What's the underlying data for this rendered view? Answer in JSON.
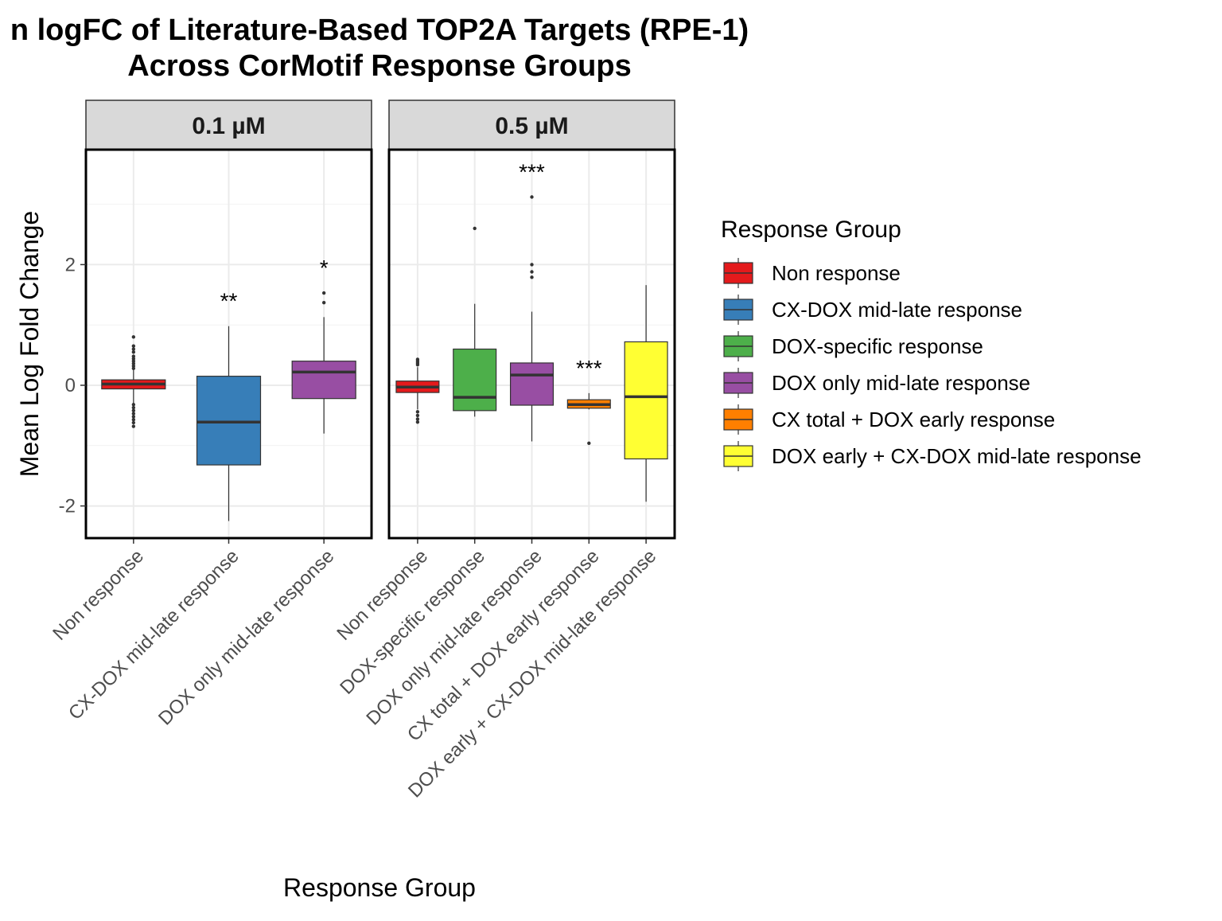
{
  "chart_data": {
    "type": "boxplot",
    "title_line1": "n logFC of Literature-Based TOP2A Targets (RPE-1)",
    "title_line2": "Across CorMotif Response Groups",
    "xlabel": "Response Group",
    "ylabel": "Mean Log Fold Change",
    "ylim": [
      -2.5,
      3.9
    ],
    "yticks": [
      -2,
      0,
      2
    ],
    "grid": true,
    "legend": {
      "title": "Response Group",
      "position": "right",
      "items": [
        {
          "label": "Non response",
          "color": "#E41A1C"
        },
        {
          "label": "CX-DOX mid-late response",
          "color": "#377EB8"
        },
        {
          "label": "DOX-specific response",
          "color": "#4DAF4A"
        },
        {
          "label": "DOX only mid-late response",
          "color": "#984EA3"
        },
        {
          "label": "CX total + DOX early response",
          "color": "#FF7F00"
        },
        {
          "label": "DOX early + CX-DOX mid-late response",
          "color": "#FFFF33"
        }
      ]
    },
    "panels": [
      {
        "label": "0.1 µM",
        "groups": [
          {
            "category": "Non response",
            "color": "#E41A1C",
            "q1": -0.06,
            "median": 0.02,
            "q3": 0.09,
            "whisker_low": -0.3,
            "whisker_high": 0.25,
            "outliers": [
              0.8,
              0.65,
              0.6,
              0.55,
              0.48,
              0.44,
              0.4,
              0.36,
              0.32,
              0.28,
              -0.32,
              -0.37,
              -0.42,
              -0.47,
              -0.52,
              -0.57,
              -0.62,
              -0.68
            ],
            "sig": ""
          },
          {
            "category": "CX-DOX mid-late response",
            "color": "#377EB8",
            "q1": -1.32,
            "median": -0.61,
            "q3": 0.15,
            "whisker_low": -2.25,
            "whisker_high": 0.98,
            "outliers": [],
            "sig": "**"
          },
          {
            "category": "DOX only mid-late response",
            "color": "#984EA3",
            "q1": -0.22,
            "median": 0.22,
            "q3": 0.4,
            "whisker_low": -0.8,
            "whisker_high": 1.13,
            "outliers": [
              1.53,
              1.37
            ],
            "sig": "*"
          }
        ]
      },
      {
        "label": "0.5 µM",
        "groups": [
          {
            "category": "Non response",
            "color": "#E41A1C",
            "q1": -0.12,
            "median": -0.03,
            "q3": 0.07,
            "whisker_low": -0.4,
            "whisker_high": 0.3,
            "outliers": [
              0.43,
              0.4,
              0.37,
              0.34,
              -0.44,
              -0.5,
              -0.56,
              -0.61
            ],
            "sig": ""
          },
          {
            "category": "DOX-specific response",
            "color": "#4DAF4A",
            "q1": -0.42,
            "median": -0.2,
            "q3": 0.6,
            "whisker_low": -0.52,
            "whisker_high": 1.35,
            "outliers": [
              2.6
            ],
            "sig": ""
          },
          {
            "category": "DOX only mid-late response",
            "color": "#984EA3",
            "q1": -0.33,
            "median": 0.17,
            "q3": 0.37,
            "whisker_low": -0.93,
            "whisker_high": 1.22,
            "outliers": [
              3.12,
              2.0,
              1.88,
              1.79
            ],
            "sig": "***"
          },
          {
            "category": "CX total + DOX early response",
            "color": "#FF7F00",
            "q1": -0.38,
            "median": -0.32,
            "q3": -0.24,
            "whisker_low": -0.4,
            "whisker_high": -0.13,
            "outliers": [
              -0.96
            ],
            "sig": "***"
          },
          {
            "category": "DOX early + CX-DOX mid-late response",
            "color": "#FFFF33",
            "q1": -1.22,
            "median": -0.19,
            "q3": 0.72,
            "whisker_low": -1.93,
            "whisker_high": 1.66,
            "outliers": [],
            "sig": ""
          }
        ]
      }
    ]
  }
}
